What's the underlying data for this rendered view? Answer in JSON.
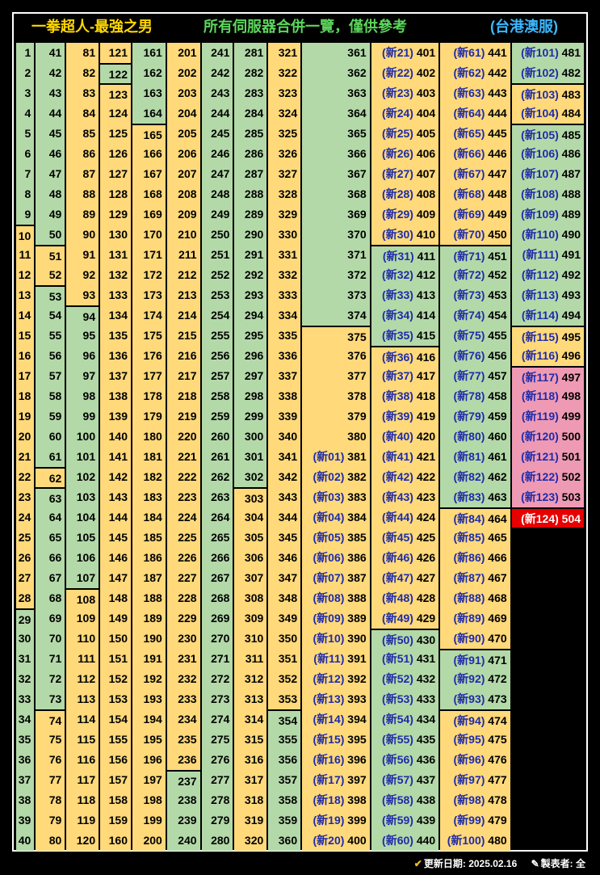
{
  "header": {
    "left": "一拳超人-最強之男",
    "middle": "所有伺服器合併一覽，僅供參考",
    "right": "(台港澳服)",
    "colors": {
      "left": "#ffd700",
      "middle": "#5cd65c",
      "right": "#3ab8ff"
    }
  },
  "colors": {
    "yellow": "#ffd97a",
    "green": "#b3d9a8",
    "pink": "#ef9ab5",
    "red": "#e60000",
    "new_label": "#1f2ba8"
  },
  "new_server_prefix": "新",
  "columns": [
    {
      "start": 1,
      "groups": [
        [
          "g",
          9
        ],
        [
          "y",
          19
        ],
        [
          "g",
          12
        ]
      ]
    },
    {
      "start": 41,
      "groups": [
        [
          "g",
          10
        ],
        [
          "y",
          2
        ],
        [
          "g",
          9
        ],
        [
          "y",
          1
        ],
        [
          "g",
          11
        ],
        [
          "y",
          7
        ]
      ]
    },
    {
      "start": 81,
      "groups": [
        [
          "y",
          13
        ],
        [
          "g",
          14
        ],
        [
          "y",
          13
        ]
      ]
    },
    {
      "start": 121,
      "groups": [
        [
          "y",
          1
        ],
        [
          "g",
          1
        ],
        [
          "y",
          38
        ]
      ]
    },
    {
      "start": 161,
      "groups": [
        [
          "g",
          4
        ],
        [
          "y",
          36
        ]
      ]
    },
    {
      "start": 201,
      "groups": [
        [
          "y",
          36
        ],
        [
          "g",
          4
        ]
      ]
    },
    {
      "start": 241,
      "groups": [
        [
          "g",
          40
        ]
      ]
    },
    {
      "start": 281,
      "groups": [
        [
          "g",
          22
        ],
        [
          "y",
          18
        ]
      ]
    },
    {
      "start": 321,
      "groups": [
        [
          "y",
          33
        ],
        [
          "g",
          7
        ]
      ]
    },
    {
      "start": 361,
      "groups": [
        [
          "g",
          14
        ],
        [
          "y",
          26
        ]
      ]
    },
    {
      "start": 401,
      "groups": [
        [
          "y",
          10
        ],
        [
          "g",
          5
        ],
        [
          "y",
          14
        ],
        [
          "g",
          11
        ]
      ],
      "new_offset": -380
    },
    {
      "start": 441,
      "groups": [
        [
          "y",
          10
        ],
        [
          "g",
          13
        ],
        [
          "y",
          7
        ],
        [
          "g",
          3
        ],
        [
          "y",
          7
        ]
      ],
      "new_offset": -380
    },
    {
      "start": 481,
      "groups": [
        [
          "g",
          2
        ],
        [
          "y",
          2
        ],
        [
          "g",
          10
        ],
        [
          "y",
          2
        ],
        [
          "p",
          7
        ],
        [
          "r",
          1
        ]
      ],
      "new_offset": -380
    }
  ],
  "footer": {
    "update": "更新日期: 2025.02.16",
    "author": "製表者: 全"
  }
}
